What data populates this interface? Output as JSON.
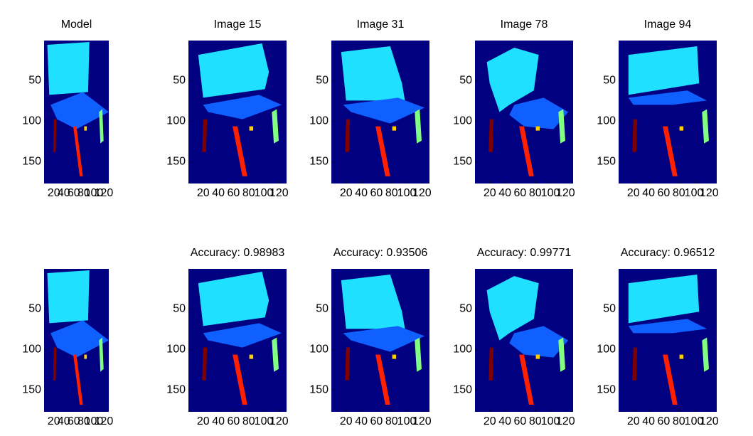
{
  "chart_data": [
    {
      "type": "image",
      "title": "Model",
      "xlim": [
        0.5,
        130
      ],
      "ylim": [
        0.5,
        177
      ],
      "xticks": [
        20,
        40,
        60,
        80,
        100,
        120
      ],
      "yticks": [
        50,
        100,
        150
      ]
    },
    {
      "type": "image",
      "title": "Image 15",
      "xlim": [
        0.5,
        130
      ],
      "ylim": [
        0.5,
        177
      ],
      "xticks": [
        20,
        40,
        60,
        80,
        100,
        120
      ],
      "yticks": [
        50,
        100,
        150
      ]
    },
    {
      "type": "image",
      "title": "Image 31",
      "xlim": [
        0.5,
        130
      ],
      "ylim": [
        0.5,
        177
      ],
      "xticks": [
        20,
        40,
        60,
        80,
        100,
        120
      ],
      "yticks": [
        50,
        100,
        150
      ]
    },
    {
      "type": "image",
      "title": "Image 78",
      "xlim": [
        0.5,
        130
      ],
      "ylim": [
        0.5,
        177
      ],
      "xticks": [
        20,
        40,
        60,
        80,
        100,
        120
      ],
      "yticks": [
        50,
        100,
        150
      ]
    },
    {
      "type": "image",
      "title": "Image 94",
      "xlim": [
        0.5,
        130
      ],
      "ylim": [
        0.5,
        177
      ],
      "xticks": [
        20,
        40,
        60,
        80,
        100,
        120
      ],
      "yticks": [
        50,
        100,
        150
      ]
    },
    {
      "type": "image",
      "xlim": [
        0.5,
        130
      ],
      "ylim": [
        0.5,
        177
      ],
      "xticks": [
        20,
        40,
        60,
        80,
        100,
        120
      ],
      "yticks": [
        50,
        100,
        150
      ]
    },
    {
      "type": "image",
      "title": "Accuracy: 0.98983",
      "xlim": [
        0.5,
        130
      ],
      "ylim": [
        0.5,
        177
      ],
      "xticks": [
        20,
        40,
        60,
        80,
        100,
        120
      ],
      "yticks": [
        50,
        100,
        150
      ]
    },
    {
      "type": "image",
      "title": "Accuracy: 0.93506",
      "xlim": [
        0.5,
        130
      ],
      "ylim": [
        0.5,
        177
      ],
      "xticks": [
        20,
        40,
        60,
        80,
        100,
        120
      ],
      "yticks": [
        50,
        100,
        150
      ]
    },
    {
      "type": "image",
      "title": "Accuracy: 0.99771",
      "xlim": [
        0.5,
        130
      ],
      "ylim": [
        0.5,
        177
      ],
      "xticks": [
        20,
        40,
        60,
        80,
        100,
        120
      ],
      "yticks": [
        50,
        100,
        150
      ]
    },
    {
      "type": "image",
      "title": "Accuracy: 0.96512",
      "xlim": [
        0.5,
        130
      ],
      "ylim": [
        0.5,
        177
      ],
      "xticks": [
        20,
        40,
        60,
        80,
        100,
        120
      ],
      "yticks": [
        50,
        100,
        150
      ]
    }
  ]
}
